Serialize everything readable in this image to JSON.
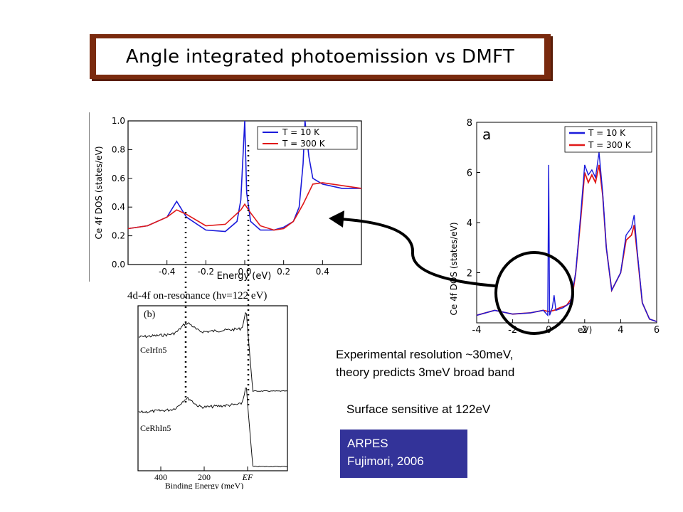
{
  "title": "Angle integrated photoemission vs DMFT",
  "colors": {
    "title_frame": "#7a2a0e",
    "t10": "#1a1adb",
    "t300": "#e01818",
    "arpes_bg": "#333399"
  },
  "left_plot": {
    "ylabel": "Ce 4f DOS (states/eV)",
    "xlabel": "Energy (eV)",
    "yticks": [
      "0.0",
      "0.2",
      "0.4",
      "0.6",
      "0.8",
      "1.0"
    ],
    "xticks": [
      "-0.4",
      "-0.2",
      "0.0",
      "0.2",
      "0.4"
    ],
    "legend": [
      "T = 10 K",
      "T = 300 K"
    ]
  },
  "right_plot": {
    "panel_label": "a",
    "ylabel": "Ce 4f DOS (states/eV)",
    "xlabel_partial": "eV)",
    "yticks": [
      "2",
      "4",
      "6",
      "8"
    ],
    "xticks": [
      "-4",
      "-2",
      "0",
      "2",
      "4",
      "6"
    ],
    "legend": [
      "T = 10 K",
      "T = 300 K"
    ]
  },
  "exp_plot": {
    "header": "4d-4f on-resonance (hν=122 eV)",
    "panel_label": "(b)",
    "sample1": "CeIrIn5",
    "sample2": "CeRhIn5",
    "xticks": [
      "400",
      "200",
      "EF"
    ],
    "xlabel": "Binding Energy (meV)"
  },
  "chart_data": [
    {
      "type": "line",
      "title": "",
      "xlabel": "Energy (eV)",
      "ylabel": "Ce 4f DOS (states/eV)",
      "xlim": [
        -0.6,
        0.6
      ],
      "ylim": [
        0,
        1.0
      ],
      "series": [
        {
          "name": "T = 10 K",
          "x": [
            -0.6,
            -0.5,
            -0.4,
            -0.35,
            -0.3,
            -0.2,
            -0.1,
            -0.04,
            -0.02,
            0.0,
            0.01,
            0.03,
            0.08,
            0.15,
            0.2,
            0.25,
            0.28,
            0.3,
            0.31,
            0.33,
            0.35,
            0.4,
            0.5,
            0.6
          ],
          "y": [
            0.25,
            0.27,
            0.33,
            0.44,
            0.33,
            0.24,
            0.23,
            0.3,
            0.45,
            1.0,
            0.5,
            0.3,
            0.24,
            0.24,
            0.26,
            0.3,
            0.4,
            0.7,
            1.0,
            0.75,
            0.6,
            0.56,
            0.53,
            0.53
          ]
        },
        {
          "name": "T = 300 K",
          "x": [
            -0.6,
            -0.5,
            -0.4,
            -0.35,
            -0.3,
            -0.2,
            -0.1,
            -0.02,
            0.0,
            0.03,
            0.08,
            0.15,
            0.2,
            0.25,
            0.3,
            0.35,
            0.4,
            0.5,
            0.6
          ],
          "y": [
            0.25,
            0.27,
            0.33,
            0.38,
            0.35,
            0.27,
            0.28,
            0.38,
            0.42,
            0.36,
            0.27,
            0.24,
            0.25,
            0.3,
            0.42,
            0.56,
            0.57,
            0.55,
            0.53
          ]
        }
      ]
    },
    {
      "type": "line",
      "title": "",
      "ylabel": "Ce 4f DOS (states/eV)",
      "xlim": [
        -4,
        6
      ],
      "ylim": [
        0,
        8
      ],
      "series": [
        {
          "name": "T = 10 K",
          "x": [
            -4,
            -3,
            -2,
            -1,
            -0.3,
            -0.05,
            0.0,
            0.05,
            0.2,
            0.3,
            0.4,
            0.8,
            1.2,
            1.5,
            1.8,
            2.0,
            2.2,
            2.4,
            2.6,
            2.8,
            3.0,
            3.2,
            3.5,
            4.0,
            4.3,
            4.6,
            4.75,
            4.9,
            5.2,
            5.6,
            6.0
          ],
          "y": [
            0.3,
            0.5,
            0.35,
            0.4,
            0.5,
            0.3,
            6.3,
            0.3,
            0.6,
            1.1,
            0.5,
            0.6,
            0.8,
            2.0,
            4.5,
            6.3,
            5.9,
            6.1,
            5.8,
            6.8,
            5.2,
            3.0,
            1.3,
            2.0,
            3.5,
            3.8,
            4.3,
            3.0,
            0.8,
            0.15,
            0.05
          ]
        },
        {
          "name": "T = 300 K",
          "x": [
            -4,
            -3,
            -2,
            -1,
            -0.3,
            0.0,
            0.3,
            0.6,
            1.0,
            1.3,
            1.5,
            1.8,
            2.0,
            2.2,
            2.4,
            2.6,
            2.8,
            3.0,
            3.2,
            3.5,
            4.0,
            4.3,
            4.6,
            4.75,
            4.9,
            5.2,
            5.6,
            6.0
          ],
          "y": [
            0.3,
            0.5,
            0.35,
            0.4,
            0.5,
            0.45,
            0.5,
            0.6,
            0.7,
            1.0,
            2.0,
            4.3,
            6.0,
            5.6,
            5.9,
            5.6,
            6.3,
            5.1,
            3.0,
            1.3,
            2.0,
            3.3,
            3.5,
            3.9,
            2.9,
            0.8,
            0.15,
            0.05
          ]
        }
      ]
    }
  ],
  "notes": {
    "resolution_line1": "Experimental resolution ~30meV,",
    "resolution_line2": "theory predicts 3meV broad band",
    "surface": "Surface sensitive at 122eV"
  },
  "arpes": {
    "line1": "ARPES",
    "line2": "Fujimori, 2006"
  }
}
